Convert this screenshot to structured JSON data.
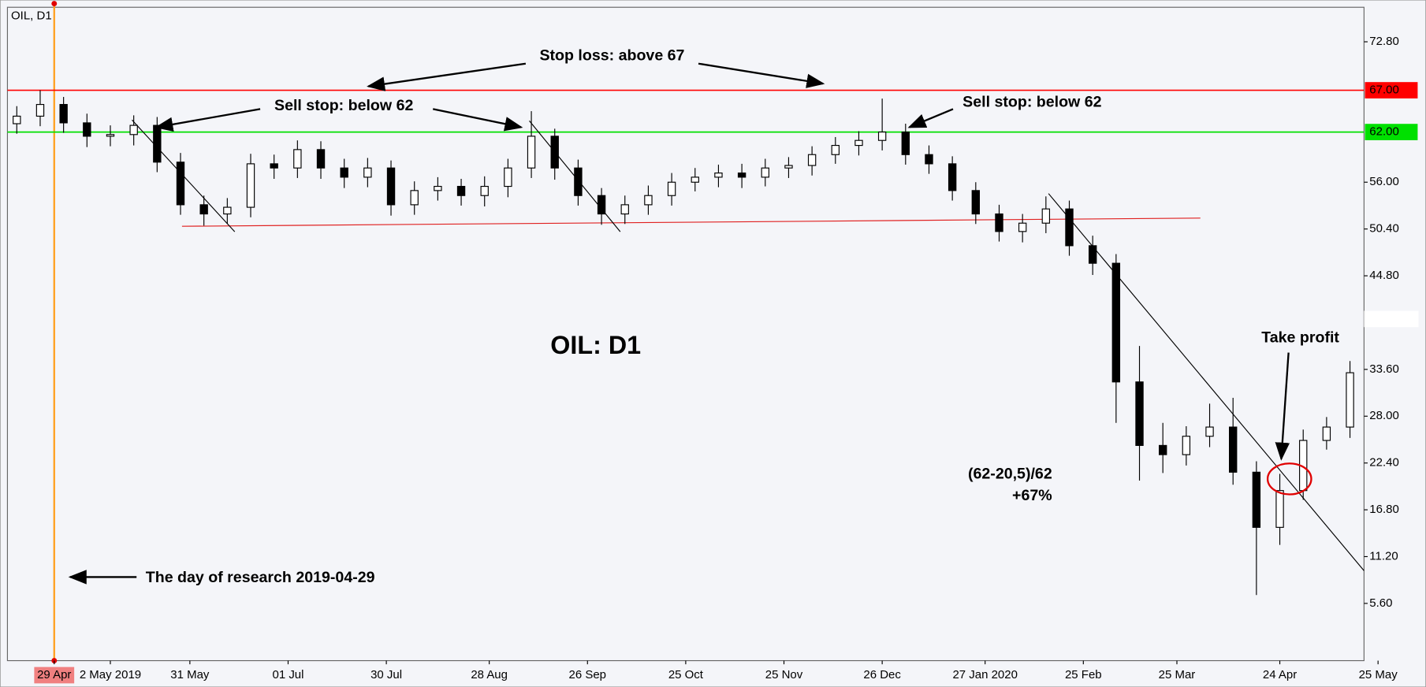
{
  "chart_data": {
    "type": "candlestick",
    "title": "OIL, D1",
    "xlim": [
      0,
      290
    ],
    "ylim": [
      -1.25,
      76.93
    ],
    "xticks": [
      {
        "value": 10,
        "label": "29 Apr"
      },
      {
        "value": 22,
        "label": "2 May 2019"
      },
      {
        "value": 39,
        "label": "31 May"
      },
      {
        "value": 60,
        "label": "01 Jul"
      },
      {
        "value": 81,
        "label": "30 Jul"
      },
      {
        "value": 103,
        "label": "28 Aug"
      },
      {
        "value": 124,
        "label": "26 Sep"
      },
      {
        "value": 145,
        "label": "25 Oct"
      },
      {
        "value": 166,
        "label": "25 Nov"
      },
      {
        "value": 187,
        "label": "26 Dec"
      },
      {
        "value": 209,
        "label": "27 Jan 2020"
      },
      {
        "value": 230,
        "label": "25 Feb"
      },
      {
        "value": 250,
        "label": "25 Mar"
      },
      {
        "value": 272,
        "label": "24 Apr"
      },
      {
        "value": 293,
        "label": "25 May"
      }
    ],
    "yticks": [
      {
        "value": 5.6,
        "label": "5.60"
      },
      {
        "value": 11.2,
        "label": "11.20"
      },
      {
        "value": 16.8,
        "label": "16.80"
      },
      {
        "value": 22.4,
        "label": "22.40"
      },
      {
        "value": 28,
        "label": "28.00"
      },
      {
        "value": 33.6,
        "label": "33.60"
      },
      {
        "value": 44.8,
        "label": "44.80"
      },
      {
        "value": 50.4,
        "label": "50.40"
      },
      {
        "value": 56,
        "label": "56.00"
      },
      {
        "value": 72.8,
        "label": "72.80"
      }
    ],
    "levels": [
      {
        "value": 67,
        "label": "67.00",
        "color": "#ff0000"
      },
      {
        "value": 62,
        "label": "62.00",
        "color": "#00e000"
      }
    ],
    "x": [
      2,
      7,
      12,
      17,
      22,
      27,
      32,
      37,
      42,
      47,
      52,
      57,
      62,
      67,
      72,
      77,
      82,
      87,
      92,
      97,
      102,
      107,
      112,
      117,
      122,
      127,
      132,
      137,
      142,
      147,
      152,
      157,
      162,
      167,
      172,
      177,
      182,
      187,
      192,
      197,
      202,
      207,
      212,
      217,
      222,
      227,
      232,
      237,
      242,
      247,
      252,
      257,
      262,
      267,
      272,
      277,
      282,
      287
    ],
    "open": [
      63,
      63.9,
      65.3,
      63.1,
      61.5,
      61.7,
      62.8,
      58.4,
      53.3,
      52.2,
      53,
      58.2,
      57.7,
      59.9,
      57.7,
      56.6,
      57.7,
      53.3,
      55,
      55.5,
      54.4,
      55.5,
      57.7,
      61.5,
      57.7,
      54.4,
      52.2,
      53.3,
      54.4,
      56,
      56.6,
      57.1,
      56.6,
      57.7,
      58,
      59.3,
      60.4,
      61,
      62,
      59.3,
      58.2,
      55,
      52.2,
      50.1,
      51.1,
      52.8,
      48.4,
      46.3,
      32.1,
      24.5,
      23.4,
      25.6,
      26.7,
      21.3,
      14.7,
      19.1,
      25.1,
      26.7
    ],
    "high": [
      65.1,
      67,
      66.2,
      64.2,
      62.8,
      64,
      63.8,
      59.5,
      54.4,
      54.1,
      59.4,
      59.3,
      61,
      60.9,
      58.8,
      58.9,
      58.6,
      56.1,
      56.6,
      56.4,
      56.7,
      58.8,
      64.5,
      62.4,
      58.7,
      55.3,
      54.4,
      55.6,
      57.1,
      57.7,
      58.1,
      58.2,
      58.8,
      59,
      60.3,
      61.4,
      62.1,
      66,
      63,
      60.4,
      59.1,
      56,
      53.3,
      52.2,
      54.3,
      53.8,
      49.6,
      47.4,
      36.4,
      27.2,
      26.8,
      29.5,
      30.2,
      22.6,
      21.1,
      26.4,
      27.9,
      34.6
    ],
    "low": [
      61.8,
      62.7,
      61.9,
      60.2,
      60.3,
      60.4,
      57.2,
      52.1,
      50.8,
      51,
      51.8,
      56.4,
      56.5,
      56.4,
      55.3,
      55.4,
      52,
      52.1,
      53.8,
      53.2,
      53.1,
      54.2,
      56.5,
      56.3,
      53.2,
      50.9,
      51,
      52.1,
      53.2,
      54.9,
      55.4,
      55.3,
      55.5,
      56.5,
      56.8,
      58.2,
      59.2,
      59.8,
      58.1,
      57,
      53.8,
      51,
      48.9,
      48.8,
      49.9,
      47.2,
      44.9,
      27.2,
      20.3,
      21.2,
      22.1,
      24.3,
      19.8,
      6.6,
      12.6,
      18,
      24,
      25.4
    ],
    "close": [
      63.9,
      65.3,
      63.1,
      61.5,
      61.7,
      62.8,
      58.4,
      53.3,
      52.2,
      53,
      58.2,
      57.7,
      59.9,
      57.7,
      56.6,
      57.7,
      53.3,
      55,
      55.5,
      54.4,
      55.5,
      57.7,
      61.5,
      57.7,
      54.4,
      52.2,
      53.3,
      54.4,
      56,
      56.6,
      57.1,
      56.6,
      57.7,
      58,
      59.3,
      60.4,
      61,
      62,
      59.3,
      58.2,
      55,
      52.2,
      50.1,
      51.1,
      52.8,
      48.4,
      46.3,
      32.1,
      24.5,
      23.4,
      25.6,
      26.7,
      21.3,
      14.7,
      19.1,
      25.1,
      26.7,
      33.2
    ],
    "annotations": [
      "Stop loss: above 67",
      "Sell stop: below 62",
      "Sell stop: below 62",
      "OIL: D1",
      "(62-20,5)/62",
      "+67%",
      "Take profit",
      "The day of research 2019-04-29"
    ]
  }
}
